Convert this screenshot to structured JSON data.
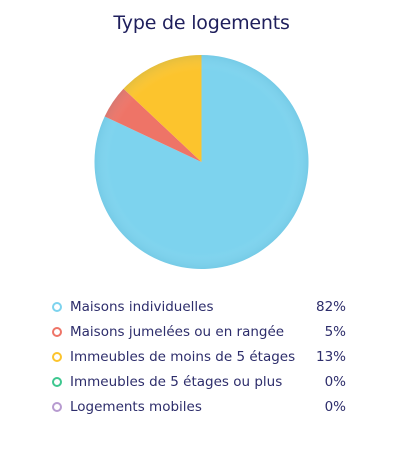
{
  "chart_data": {
    "type": "pie",
    "title": "Type de logements",
    "slices": [
      {
        "label": "Maisons individuelles",
        "value": 82,
        "display": "82%",
        "color": "#7dd3ee"
      },
      {
        "label": "Maisons jumelées ou en rangée",
        "value": 5,
        "display": "5%",
        "color": "#ee7467"
      },
      {
        "label": "Immeubles de moins de 5 étages",
        "value": 13,
        "display": "13%",
        "color": "#fcc42d"
      },
      {
        "label": "Immeubles de 5 étages ou plus",
        "value": 0,
        "display": "0%",
        "color": "#3ec78f"
      },
      {
        "label": "Logements mobiles",
        "value": 0,
        "display": "0%",
        "color": "#b79bd0"
      }
    ],
    "legend_position": "bottom"
  }
}
